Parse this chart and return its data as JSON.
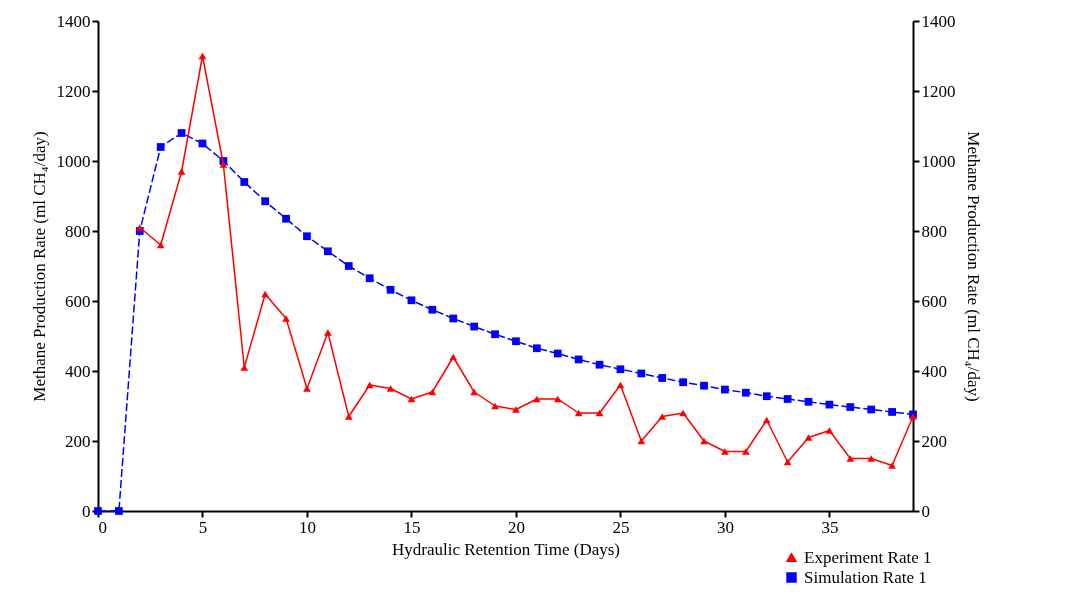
{
  "chart_data": {
    "type": "line",
    "xlabel": "Hydraulic Retention Time (Days)",
    "ylabel": "Methane Production Rate (ml CH₄/day)",
    "y2label": "Methane Production Rate (ml CH₄/day)",
    "xlim": [
      0,
      39
    ],
    "xticks": [
      0,
      5,
      10,
      15,
      20,
      25,
      30,
      35
    ],
    "ylim": [
      0,
      1400
    ],
    "yticks": [
      0,
      200,
      400,
      600,
      800,
      1000,
      1200,
      1400
    ],
    "y2lim": [
      0,
      1400
    ],
    "y2ticks": [
      0,
      200,
      400,
      600,
      800,
      1000,
      1200,
      1400
    ],
    "grid": false,
    "legend": "bottom right",
    "series": [
      {
        "name": "Experiment Rate 1",
        "color": "#ff0000",
        "marker": "triangle",
        "line_style": "solid",
        "x": [
          2,
          3,
          4,
          5,
          6,
          7,
          8,
          9,
          10,
          11,
          12,
          13,
          14,
          15,
          16,
          17,
          18,
          19,
          20,
          21,
          22,
          23,
          24,
          25,
          26,
          27,
          28,
          29,
          30,
          31,
          32,
          33,
          34,
          35,
          36,
          37,
          38,
          39
        ],
        "values": [
          810,
          760,
          970,
          1300,
          990,
          410,
          620,
          550,
          350,
          510,
          270,
          360,
          350,
          320,
          340,
          440,
          340,
          300,
          290,
          320,
          320,
          280,
          280,
          360,
          200,
          270,
          280,
          200,
          170,
          170,
          260,
          140,
          210,
          230,
          150,
          150,
          130,
          270
        ]
      },
      {
        "name": "Simulation Rate 1",
        "color": "#0000ff",
        "marker": "square",
        "line_style": "dashed",
        "axis": "y2",
        "x": [
          0,
          1,
          2,
          3,
          4,
          5,
          6,
          7,
          8,
          9,
          10,
          11,
          12,
          13,
          14,
          15,
          16,
          17,
          18,
          19,
          20,
          21,
          22,
          23,
          24,
          25,
          26,
          27,
          28,
          29,
          30,
          31,
          32,
          33,
          34,
          35,
          36,
          37,
          38,
          39
        ],
        "values": [
          0,
          0,
          800,
          1040,
          1080,
          1050,
          1000,
          940,
          885,
          835,
          785,
          742,
          700,
          665,
          632,
          602,
          575,
          550,
          527,
          505,
          485,
          465,
          450,
          433,
          418,
          405,
          393,
          380,
          368,
          358,
          347,
          338,
          328,
          320,
          312,
          304,
          297,
          290,
          283,
          276
        ]
      }
    ]
  }
}
